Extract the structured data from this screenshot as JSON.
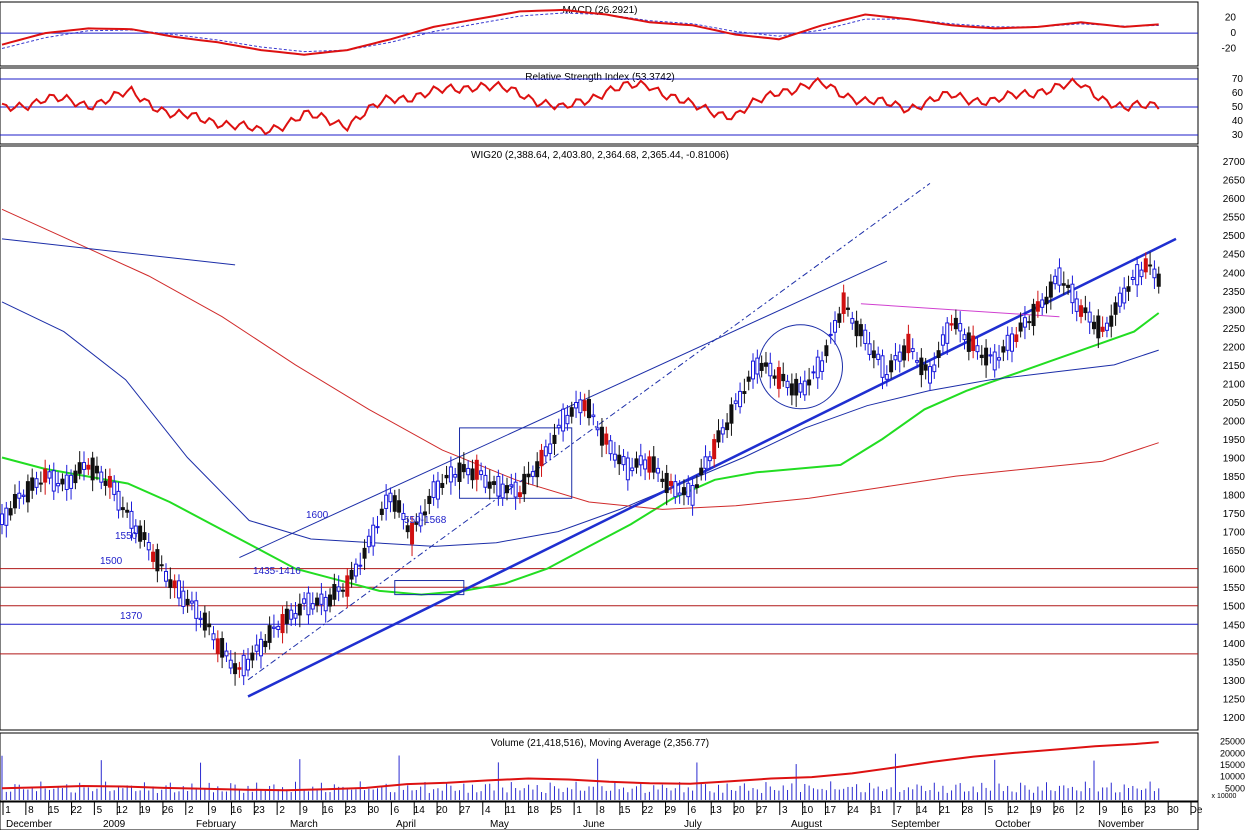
{
  "colors": {
    "price_up": "#1a1adb",
    "price_down": "#d01010",
    "ma_green": "#22dd22",
    "ma_blue": "#1c2ea8",
    "ma_red": "#d02a2a",
    "level_red": "#b01818",
    "level_blue": "#1c1cc8",
    "trend": "#1f2fd0",
    "indicator": "#dd1111",
    "signal": "#3a3ad0",
    "wedge": "#d040d0",
    "volume_bar": "#2a2ad0"
  },
  "chart_data": [
    {
      "type": "line",
      "title": "MACD (26.2921)",
      "y_ticks": [
        20,
        0,
        -20
      ],
      "ylim": [
        -40,
        35
      ],
      "zero_line": 0,
      "series": [],
      "x_index": [
        0,
        10,
        20,
        30,
        40,
        50,
        60,
        70,
        80,
        90,
        100,
        110,
        120,
        130,
        140,
        150,
        160,
        170,
        180,
        190,
        200,
        210,
        220,
        230,
        240,
        250,
        260,
        270
      ],
      "macd": [
        -15,
        0,
        6,
        5,
        -5,
        -12,
        -22,
        -28,
        -22,
        -8,
        8,
        18,
        28,
        30,
        24,
        14,
        10,
        -2,
        -8,
        10,
        24,
        18,
        10,
        6,
        8,
        14,
        8,
        12
      ],
      "signal": [
        -20,
        -6,
        3,
        4,
        -2,
        -9,
        -18,
        -24,
        -22,
        -12,
        2,
        12,
        22,
        26,
        24,
        16,
        12,
        2,
        -4,
        4,
        18,
        18,
        12,
        8,
        8,
        12,
        9,
        10
      ]
    },
    {
      "type": "line",
      "title": "Relative Strength Index (53.3742)",
      "y_ticks": [
        70,
        60,
        50,
        40,
        30
      ],
      "ylim": [
        25,
        75
      ],
      "reference_lines": [
        70,
        50,
        30
      ],
      "series": [],
      "x_index": [
        0,
        10,
        20,
        30,
        40,
        50,
        60,
        70,
        80,
        90,
        100,
        110,
        120,
        130,
        140,
        150,
        160,
        170,
        180,
        190,
        200,
        210,
        220,
        230,
        240,
        250,
        260,
        270
      ],
      "values": [
        48,
        56,
        52,
        60,
        44,
        40,
        32,
        44,
        38,
        56,
        60,
        66,
        60,
        48,
        62,
        66,
        50,
        44,
        62,
        66,
        54,
        50,
        58,
        54,
        62,
        66,
        48,
        54
      ]
    },
    {
      "type": "candlestick",
      "title": "WIG20 (2,388.64, 2,403.80, 2,364.68, 2,365.44, -0.81006)",
      "y_ticks": [
        1200,
        1250,
        1300,
        1350,
        1400,
        1450,
        1500,
        1550,
        1600,
        1650,
        1700,
        1750,
        1800,
        1850,
        1900,
        1950,
        2000,
        2050,
        2100,
        2150,
        2200,
        2250,
        2300,
        2350,
        2400,
        2450,
        2500,
        2550,
        2600,
        2650,
        2700
      ],
      "ylim": [
        1170,
        2730
      ],
      "series": [],
      "x_index": [
        0,
        5,
        10,
        15,
        20,
        25,
        30,
        35,
        40,
        45,
        50,
        55,
        60,
        65,
        70,
        75,
        80,
        85,
        90,
        95,
        100,
        105,
        110,
        115,
        120,
        125,
        130,
        135,
        140,
        145,
        150,
        155,
        160,
        165,
        170,
        175,
        180,
        185,
        190,
        195,
        200,
        205,
        210,
        215,
        220,
        225,
        230,
        235,
        240,
        245,
        250,
        255,
        260,
        265,
        270
      ],
      "close": [
        1720,
        1800,
        1860,
        1820,
        1880,
        1840,
        1720,
        1640,
        1560,
        1480,
        1400,
        1330,
        1380,
        1460,
        1510,
        1500,
        1560,
        1670,
        1790,
        1700,
        1810,
        1850,
        1870,
        1820,
        1800,
        1900,
        2000,
        2040,
        1950,
        1870,
        1880,
        1830,
        1800,
        1920,
        2050,
        2150,
        2110,
        2090,
        2150,
        2310,
        2230,
        2120,
        2200,
        2130,
        2260,
        2200,
        2170,
        2220,
        2300,
        2400,
        2290,
        2240,
        2350,
        2410,
        2365
      ],
      "moving_averages": [
        {
          "period_color": "green",
          "values": [
            1900,
            1870,
            1850,
            1830,
            1780,
            1720,
            1660,
            1600,
            1570,
            1540,
            1530,
            1540,
            1560,
            1600,
            1660,
            1720,
            1790,
            1840,
            1860,
            1870,
            1880,
            1950,
            2030,
            2080,
            2120,
            2160,
            2200,
            2240,
            2290
          ]
        },
        {
          "period_color": "blue",
          "values": [
            2320,
            2240,
            2110,
            1900,
            1730,
            1680,
            1670,
            1660,
            1670,
            1700,
            1760,
            1830,
            1900,
            1980,
            2040,
            2080,
            2110,
            2130,
            2150,
            2190
          ]
        },
        {
          "period_color": "red",
          "values": [
            2570,
            2480,
            2390,
            2280,
            2150,
            2030,
            1920,
            1840,
            1780,
            1760,
            1770,
            1790,
            1820,
            1850,
            1870,
            1890,
            1940
          ]
        }
      ],
      "horizontal_levels": [
        1600,
        1550,
        1500,
        1450,
        1370
      ],
      "annotations": [
        {
          "text": "1600",
          "level": 1600
        },
        {
          "text": "1550",
          "level": 1550
        },
        {
          "text": "1500",
          "level": 1500
        },
        {
          "text": "1435-1416",
          "level": 1480
        },
        {
          "text": "1370",
          "level": 1370
        },
        {
          "text": "550-1568",
          "level": 1590
        }
      ]
    },
    {
      "type": "bar",
      "title": "Volume (21,418,516), Moving Average (2,356.77)",
      "y_ticks": [
        25000,
        20000,
        15000,
        10000,
        5000
      ],
      "tick_labels": [
        "25000",
        "20000",
        "15000",
        "10000",
        "5000"
      ],
      "unit": "x 10000",
      "ylim": [
        0,
        27000
      ],
      "volume_ma": [
        5000,
        5500,
        6000,
        5800,
        5200,
        4800,
        4400,
        4200,
        4600,
        5200,
        6800,
        7400,
        8400,
        9200,
        8800,
        7800,
        7200,
        7000,
        8000,
        9200,
        9800,
        11400,
        13800,
        16400,
        18600,
        20200,
        21600,
        23000,
        24000,
        24800
      ]
    }
  ],
  "x_axis": {
    "day_ticks": [
      "1",
      "8",
      "15",
      "22",
      "5",
      "12",
      "19",
      "26",
      "2",
      "9",
      "16",
      "23",
      "2",
      "9",
      "16",
      "23",
      "30",
      "6",
      "14",
      "20",
      "27",
      "4",
      "11",
      "18",
      "25",
      "1",
      "8",
      "15",
      "22",
      "29",
      "6",
      "13",
      "20",
      "27",
      "3",
      "10",
      "17",
      "24",
      "31",
      "7",
      "14",
      "21",
      "28",
      "5",
      "12",
      "19",
      "26",
      "2",
      "9",
      "16",
      "23",
      "30",
      "De"
    ],
    "month_labels": [
      "December",
      "2009",
      "February",
      "March",
      "April",
      "May",
      "June",
      "July",
      "August",
      "September",
      "October",
      "November"
    ]
  }
}
